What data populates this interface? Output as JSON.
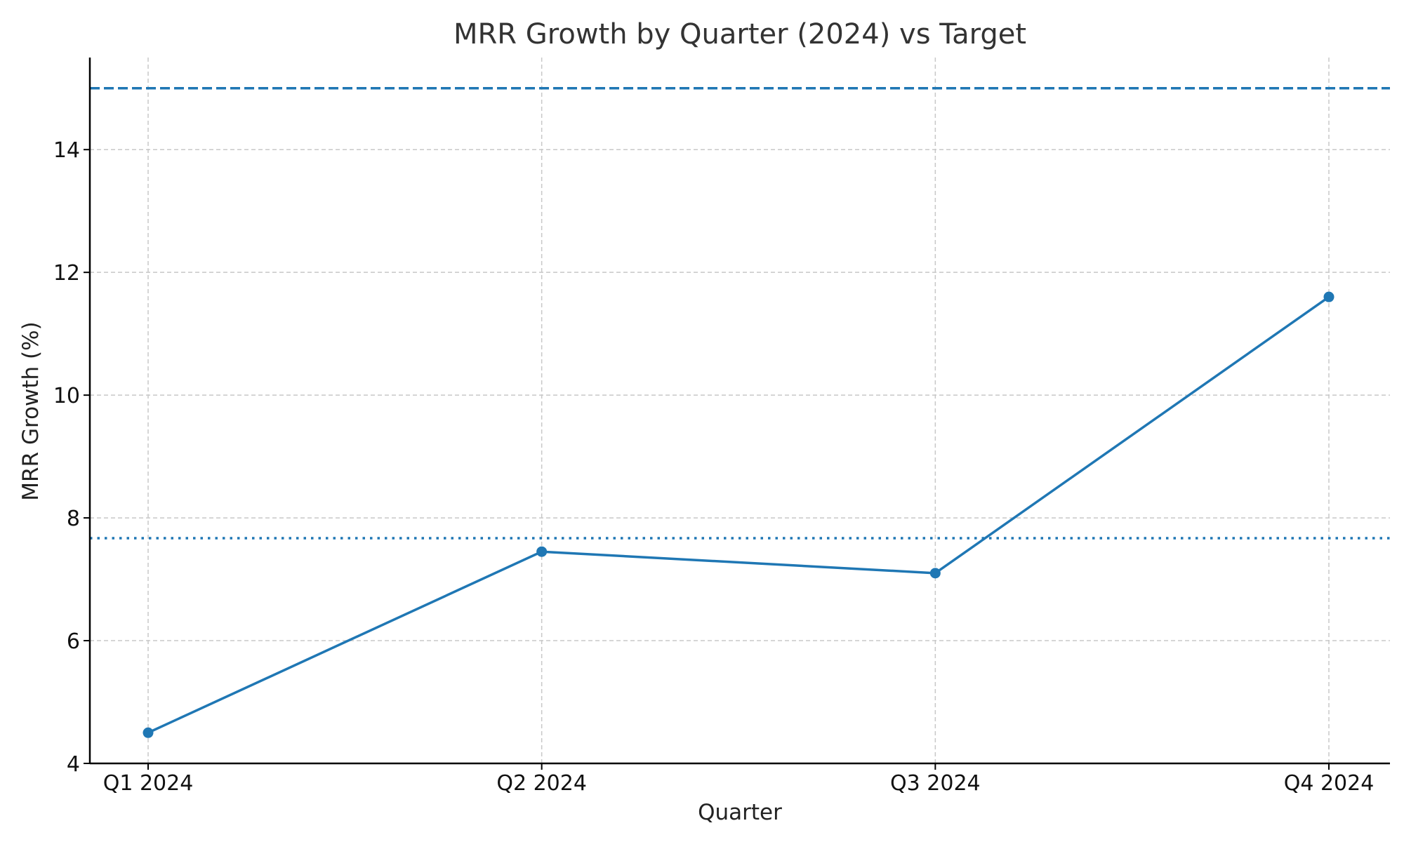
{
  "chart_data": {
    "type": "line",
    "title": "MRR Growth by Quarter (2024) vs Target",
    "xlabel": "Quarter",
    "ylabel": "MRR Growth (%)",
    "categories": [
      "Q1 2024",
      "Q2 2024",
      "Q3 2024",
      "Q4 2024"
    ],
    "series": [
      {
        "values": [
          4.5,
          7.45,
          7.1,
          11.6
        ],
        "color": "#1f77b4",
        "marker": "circle"
      }
    ],
    "reference_lines": [
      {
        "y": 15.0,
        "style": "dashed",
        "color": "#1f77b4"
      },
      {
        "y": 7.67,
        "style": "dotted",
        "color": "#1f77b4"
      }
    ],
    "ylim": [
      4,
      15.5
    ],
    "yticks": [
      4,
      6,
      8,
      10,
      12,
      14
    ],
    "grid": true,
    "legend": "none"
  }
}
